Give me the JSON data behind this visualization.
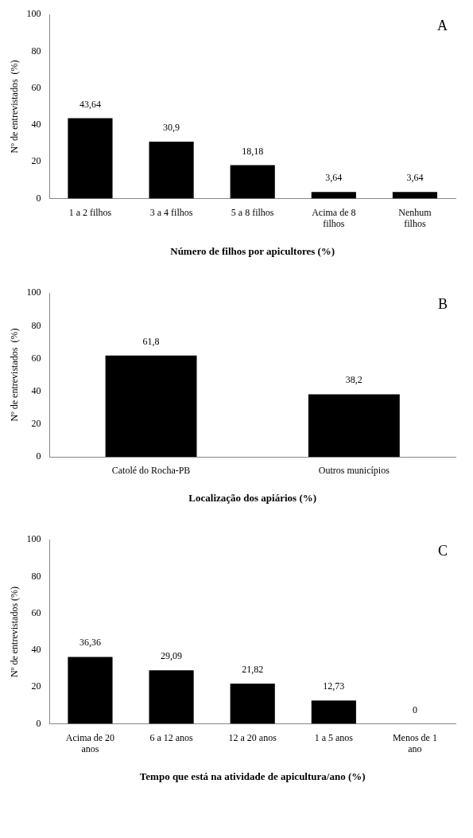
{
  "chart_data": [
    {
      "type": "bar",
      "xlabel": "Número de filhos por apicultores (%)",
      "ylabel": "Nº de entrevistados  (%)",
      "annotations": [
        "A"
      ],
      "categories": [
        "1 a 2 filhos",
        "3 a 4 filhos",
        "5 a 8 filhos",
        "Acima de 8 filhos",
        "Nenhum filhos"
      ],
      "values": [
        43.64,
        30.9,
        18.18,
        3.64,
        3.64
      ],
      "value_labels": [
        "43,64",
        "30,9",
        "18,18",
        "3,64",
        "3,64"
      ],
      "color": "#000000",
      "ylim": [
        0,
        100
      ],
      "yticks": [
        0,
        20,
        40,
        60,
        80,
        100
      ],
      "grid": false,
      "legend": false
    },
    {
      "type": "bar",
      "xlabel": "Localização dos apiários (%)",
      "ylabel": "Nº de entrevistados  (%)",
      "annotations": [
        "B"
      ],
      "categories": [
        "Catolé do Rocha-PB",
        "Outros municípios"
      ],
      "values": [
        61.8,
        38.2
      ],
      "value_labels": [
        "61,8",
        "38,2"
      ],
      "color": "#000000",
      "ylim": [
        0,
        100
      ],
      "yticks": [
        0,
        20,
        40,
        60,
        80,
        100
      ],
      "grid": false,
      "legend": false
    },
    {
      "type": "bar",
      "xlabel": "Tempo que está na atividade de apicultura/ano (%)",
      "ylabel": "Nº de entrevistados (%)",
      "annotations": [
        "C"
      ],
      "categories": [
        "Acima de 20 anos",
        "6 a 12 anos",
        "12 a 20 anos",
        "1 a 5 anos",
        "Menos de 1 ano"
      ],
      "values": [
        36.36,
        29.09,
        21.82,
        12.73,
        0
      ],
      "value_labels": [
        "36,36",
        "29,09",
        "21,82",
        "12,73",
        "0"
      ],
      "color": "#000000",
      "ylim": [
        0,
        100
      ],
      "yticks": [
        0,
        20,
        40,
        60,
        80,
        100
      ],
      "grid": false,
      "legend": false
    }
  ]
}
